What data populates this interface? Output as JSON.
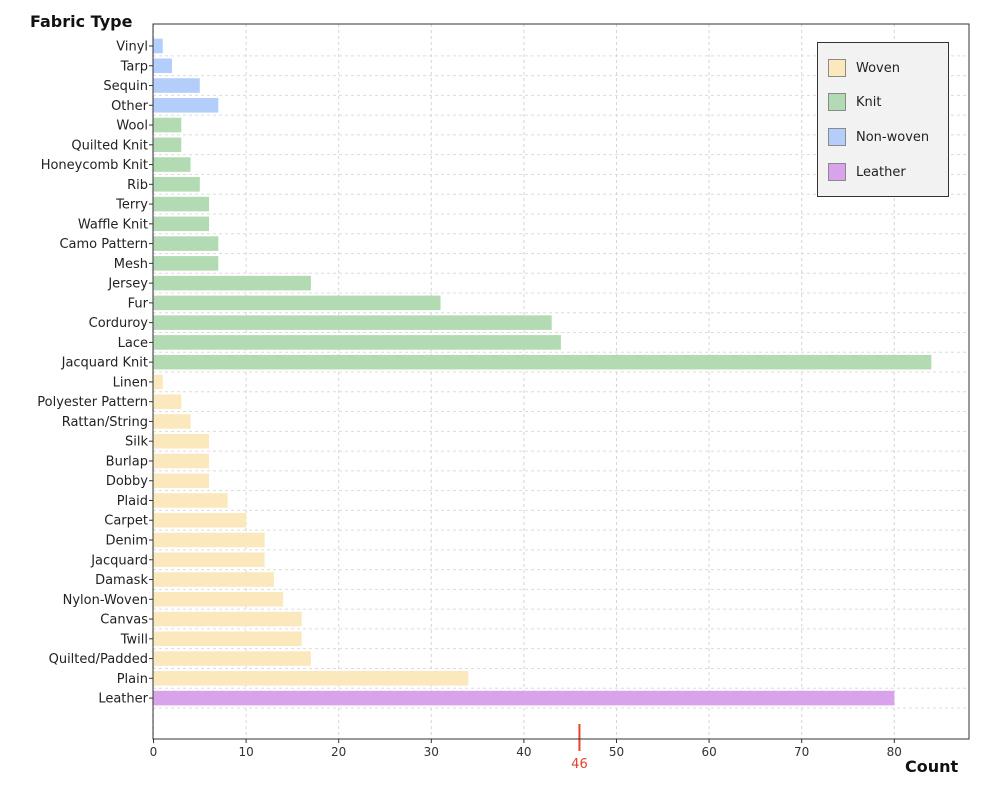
{
  "chart_data": {
    "type": "bar",
    "orientation": "horizontal",
    "ylabel": "Fabric Type",
    "xlabel": "Count",
    "xlim": [
      0,
      88
    ],
    "xticks": [
      0,
      10,
      20,
      30,
      40,
      50,
      60,
      70,
      80
    ],
    "grid": true,
    "legend_position": "top-right",
    "marker": {
      "value": 46,
      "label": "46",
      "color": "#e8412c"
    },
    "groups": [
      {
        "name": "Woven",
        "color": "#fbe8bd"
      },
      {
        "name": "Knit",
        "color": "#b3dbb3"
      },
      {
        "name": "Non-woven",
        "color": "#b3cefb"
      },
      {
        "name": "Leather",
        "color": "#d8a3eb"
      }
    ],
    "categories": [
      "Vinyl",
      "Tarp",
      "Sequin",
      "Other",
      "Wool",
      "Quilted Knit",
      "Honeycomb Knit",
      "Rib",
      "Terry",
      "Waffle Knit",
      "Camo Pattern",
      "Mesh",
      "Jersey",
      "Fur",
      "Corduroy",
      "Lace",
      "Jacquard Knit",
      "Linen",
      "Polyester Pattern",
      "Rattan/String",
      "Silk",
      "Burlap",
      "Dobby",
      "Plaid",
      "Carpet",
      "Denim",
      "Jacquard",
      "Damask",
      "Nylon-Woven",
      "Canvas",
      "Twill",
      "Quilted/Padded",
      "Plain",
      "Leather"
    ],
    "values": [
      1,
      2,
      5,
      7,
      3,
      3,
      4,
      5,
      6,
      6,
      7,
      7,
      17,
      31,
      43,
      44,
      84,
      1,
      3,
      4,
      6,
      6,
      6,
      8,
      10,
      12,
      12,
      13,
      14,
      16,
      16,
      17,
      34,
      80
    ],
    "category_group": [
      "Non-woven",
      "Non-woven",
      "Non-woven",
      "Non-woven",
      "Knit",
      "Knit",
      "Knit",
      "Knit",
      "Knit",
      "Knit",
      "Knit",
      "Knit",
      "Knit",
      "Knit",
      "Knit",
      "Knit",
      "Knit",
      "Woven",
      "Woven",
      "Woven",
      "Woven",
      "Woven",
      "Woven",
      "Woven",
      "Woven",
      "Woven",
      "Woven",
      "Woven",
      "Woven",
      "Woven",
      "Woven",
      "Woven",
      "Woven",
      "Leather"
    ]
  }
}
